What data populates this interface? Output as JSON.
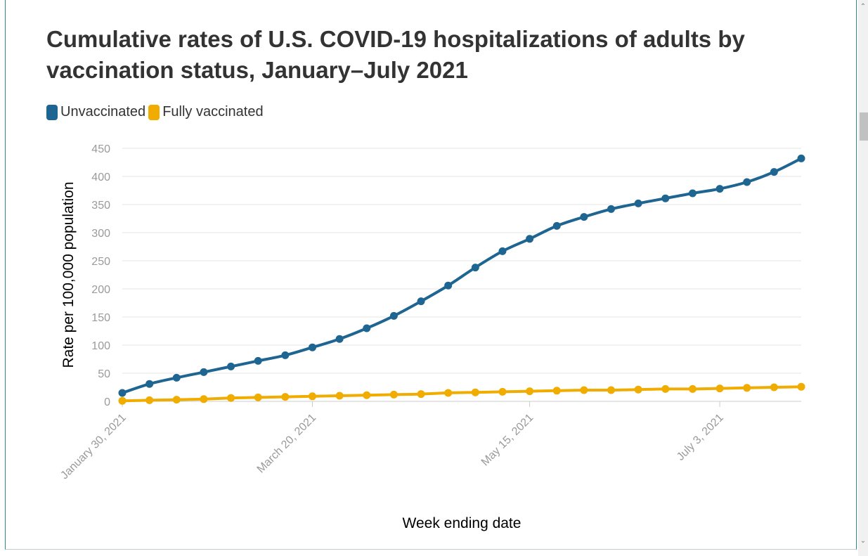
{
  "chart_data": {
    "type": "line",
    "title": "Cumulative rates of U.S. COVID-19 hospitalizations of adults by vaccination status, January–July 2021",
    "xlabel": "Week ending date",
    "ylabel": "Rate per 100,000 population",
    "ylim": [
      0,
      450
    ],
    "yticks": [
      0,
      50,
      100,
      150,
      200,
      250,
      300,
      350,
      400,
      450
    ],
    "x": [
      "2021-01-30",
      "2021-02-06",
      "2021-02-13",
      "2021-02-20",
      "2021-02-27",
      "2021-03-06",
      "2021-03-13",
      "2021-03-20",
      "2021-03-27",
      "2021-04-03",
      "2021-04-10",
      "2021-04-17",
      "2021-04-24",
      "2021-05-01",
      "2021-05-08",
      "2021-05-15",
      "2021-05-22",
      "2021-05-29",
      "2021-06-05",
      "2021-06-12",
      "2021-06-19",
      "2021-06-26",
      "2021-07-03",
      "2021-07-10",
      "2021-07-17",
      "2021-07-24"
    ],
    "xtick_labels": [
      "January 30, 2021",
      "March 20, 2021",
      "May 15, 2021",
      "July 3, 2021"
    ],
    "xtick_indices": [
      0,
      7,
      15,
      22
    ],
    "grid": true,
    "legend_position": "top-left",
    "series": [
      {
        "name": "Unvaccinated",
        "color": "#1f6591",
        "values": [
          15,
          31,
          42,
          52,
          62,
          72,
          82,
          96,
          111,
          130,
          152,
          178,
          206,
          238,
          267,
          289,
          312,
          328,
          342,
          352,
          361,
          370,
          378,
          390,
          408,
          432
        ]
      },
      {
        "name": "Fully vaccinated",
        "color": "#f0ad00",
        "values": [
          1,
          2,
          3,
          4,
          6,
          7,
          8,
          9,
          10,
          11,
          12,
          13,
          15,
          16,
          17,
          18,
          19,
          20,
          20,
          21,
          22,
          22,
          23,
          24,
          25,
          26
        ]
      }
    ]
  }
}
